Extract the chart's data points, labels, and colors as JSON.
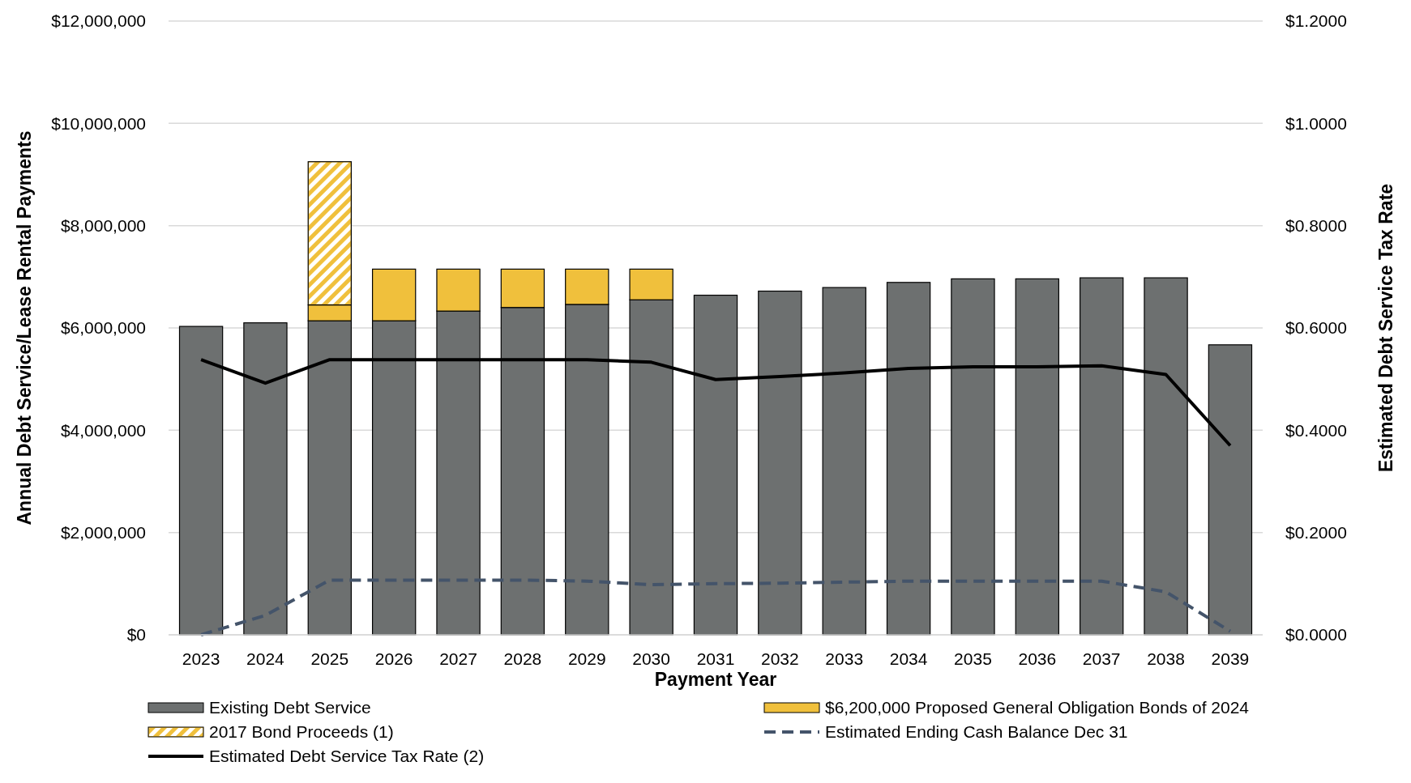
{
  "chart_data": {
    "type": "bar",
    "stacked": true,
    "xlabel": "Payment Year",
    "ylabel": "Annual Debt Service/Lease Rental Payments",
    "y2label": "Estimated Debt Service Tax Rate",
    "categories": [
      "2023",
      "2024",
      "2025",
      "2026",
      "2027",
      "2028",
      "2029",
      "2030",
      "2031",
      "2032",
      "2033",
      "2034",
      "2035",
      "2036",
      "2037",
      "2038",
      "2039"
    ],
    "series": [
      {
        "name": "Existing Debt Service",
        "color": "#6d7070",
        "values": [
          6030000.0,
          6100000.0,
          6140000.0,
          6140000.0,
          6330000.0,
          6400000.0,
          6460000.0,
          6550000.0,
          6640000.0,
          6720000.0,
          6790000.0,
          6890000.0,
          6960000.0,
          6960000.0,
          6980000.0,
          6980000.0,
          5670000.0
        ]
      },
      {
        "name": "$6,200,000  Proposed General Obligation Bonds of 2024",
        "color": "#f0c03c",
        "values": [
          null,
          null,
          310000.0,
          1010000.0,
          820000.0,
          750000.0,
          690000.0,
          600000.0,
          null,
          null,
          null,
          null,
          null,
          null,
          null,
          null,
          null
        ]
      },
      {
        "name": "2017 Bond Proceeds (1)",
        "color": "#f0c03c",
        "values": [
          null,
          null,
          2800000.0,
          null,
          null,
          null,
          null,
          null,
          null,
          null,
          null,
          null,
          null,
          null,
          null,
          null,
          null
        ]
      },
      {
        "name": "Estimated Ending Cash Balance Dec 31",
        "type": "line",
        "line_style": "dashed",
        "color": "#44546a",
        "values": [
          0,
          380000.0,
          1070000.0,
          1070000.0,
          1070000.0,
          1070000.0,
          1050000.0,
          980000.0,
          1000000.0,
          1010000.0,
          1030000.0,
          1050000.0,
          1050000.0,
          1050000.0,
          1050000.0,
          840000.0,
          70000.0
        ]
      },
      {
        "name": "Estimated Debt Service Tax Rate (2)",
        "type": "line",
        "axis": "y2",
        "line_style": "solid",
        "color": "#000000",
        "values": [
          0.538,
          0.492,
          0.538,
          0.538,
          0.538,
          0.538,
          0.538,
          0.533,
          0.499,
          0.505,
          0.512,
          0.521,
          0.524,
          0.524,
          0.526,
          0.509,
          0.37
        ]
      }
    ],
    "ylim": [
      0,
      12000000
    ],
    "yticks": [
      {
        "value": 0,
        "label": "$0"
      },
      {
        "value": 2000000,
        "label": "$2,000,000"
      },
      {
        "value": 4000000,
        "label": "$4,000,000"
      },
      {
        "value": 6000000,
        "label": "$6,000,000"
      },
      {
        "value": 8000000,
        "label": "$8,000,000"
      },
      {
        "value": 10000000,
        "label": "$10,000,000"
      },
      {
        "value": 12000000,
        "label": "$12,000,000"
      }
    ],
    "y2lim": [
      0,
      1.2
    ],
    "y2ticks": [
      {
        "value": 0,
        "label": "$0.0000"
      },
      {
        "value": 0.2,
        "label": "$0.2000"
      },
      {
        "value": 0.4,
        "label": "$0.4000"
      },
      {
        "value": 0.6,
        "label": "$0.6000"
      },
      {
        "value": 0.8,
        "label": "$0.8000"
      },
      {
        "value": 1.0,
        "label": "$1.0000"
      },
      {
        "value": 1.2,
        "label": "$1.2000"
      }
    ],
    "grid": "y",
    "legend": "bottom"
  }
}
